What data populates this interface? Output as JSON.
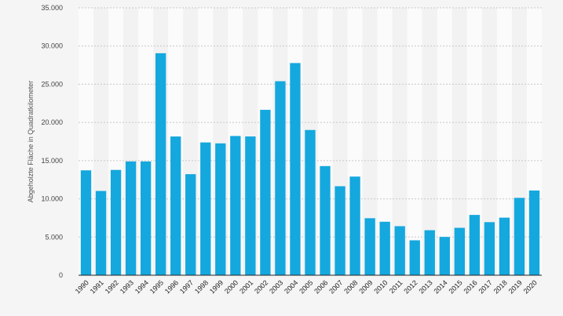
{
  "chart_data": {
    "type": "bar",
    "title": "",
    "xlabel": "",
    "ylabel": "Abgeholzte Fläche in Quadratkilometer",
    "categories": [
      "1990",
      "1991",
      "1992",
      "1993",
      "1994",
      "1995",
      "1996",
      "1997",
      "1998",
      "1999",
      "2000",
      "2001",
      "2002",
      "2003",
      "2004",
      "2005",
      "2006",
      "2007",
      "2008",
      "2009",
      "2010",
      "2011",
      "2012",
      "2013",
      "2014",
      "2015",
      "2016",
      "2017",
      "2018",
      "2019",
      "2020"
    ],
    "values": [
      13730,
      11030,
      13786,
      14896,
      14896,
      29059,
      18161,
      13227,
      17383,
      17259,
      18226,
      18165,
      21651,
      25396,
      27772,
      19014,
      14286,
      11651,
      12911,
      7464,
      7000,
      6418,
      4571,
      5891,
      5012,
      6207,
      7893,
      6947,
      7536,
      10129,
      11088
    ],
    "ylim": [
      0,
      35000
    ],
    "yticks": [
      0,
      5000,
      10000,
      15000,
      20000,
      25000,
      30000,
      35000
    ],
    "ytick_labels": [
      "0",
      "5.000",
      "10.000",
      "15.000",
      "20.000",
      "25.000",
      "30.000",
      "35.000"
    ],
    "grid": true,
    "legend": "none",
    "colors": {
      "bar": "#14a8de",
      "grid": "#c8c8c8",
      "band_light": "#fbfbfb",
      "band_dark": "#f2f2f2",
      "axis": "#222222"
    }
  }
}
